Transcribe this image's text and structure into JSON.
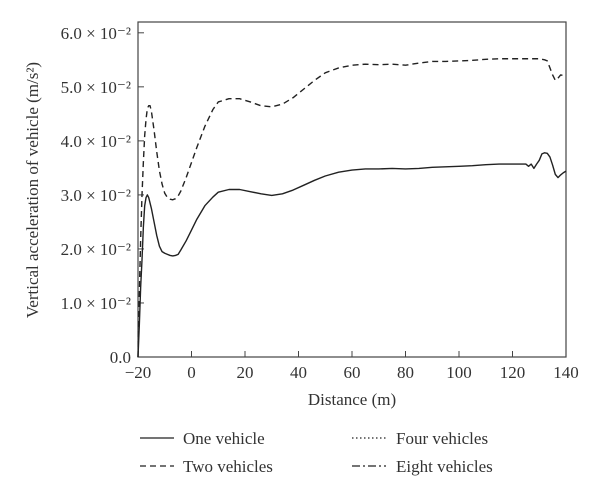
{
  "chart_data": {
    "type": "line",
    "xlabel": "Distance (m)",
    "ylabel": "Vertical acceleration of vehicle (m/s²)",
    "xlim": [
      -20,
      140
    ],
    "ylim": [
      0,
      0.062
    ],
    "x_ticks": [
      -20,
      0,
      20,
      40,
      60,
      80,
      100,
      120,
      140
    ],
    "y_ticks": [
      {
        "value": 0,
        "label": "0.0"
      },
      {
        "value": 0.01,
        "label": "1.0 × 10⁻²"
      },
      {
        "value": 0.02,
        "label": "2.0 × 10⁻²"
      },
      {
        "value": 0.03,
        "label": "3.0 × 10⁻²"
      },
      {
        "value": 0.04,
        "label": "4.0 × 10⁻²"
      },
      {
        "value": 0.05,
        "label": "5.0 × 10⁻²"
      },
      {
        "value": 0.06,
        "label": "6.0 × 10⁻²"
      }
    ],
    "grid": false,
    "legend_position": "bottom",
    "series": [
      {
        "name": "One vehicle",
        "line_style": "solid",
        "x": [
          -20,
          -19.5,
          -19,
          -18.5,
          -18,
          -17.5,
          -17,
          -16.5,
          -16,
          -15,
          -14,
          -13,
          -12,
          -11,
          -10,
          -9,
          -8,
          -7,
          -6,
          -5,
          -4,
          -2,
          0,
          2,
          5,
          8,
          10,
          14,
          18,
          22,
          26,
          30,
          34,
          38,
          42,
          46,
          50,
          55,
          60,
          65,
          70,
          75,
          80,
          85,
          90,
          95,
          100,
          105,
          110,
          115,
          120,
          124,
          125,
          126,
          127,
          128,
          129,
          130,
          131,
          132,
          133,
          134,
          135,
          136,
          137,
          138,
          139,
          140
        ],
        "y": [
          0.0,
          0.006,
          0.013,
          0.018,
          0.024,
          0.028,
          0.0295,
          0.03,
          0.0295,
          0.0275,
          0.025,
          0.0225,
          0.0205,
          0.0195,
          0.0192,
          0.019,
          0.0188,
          0.0187,
          0.0188,
          0.019,
          0.0198,
          0.0215,
          0.0235,
          0.0255,
          0.028,
          0.0296,
          0.0305,
          0.031,
          0.031,
          0.0306,
          0.0302,
          0.0299,
          0.0302,
          0.0309,
          0.0318,
          0.0327,
          0.0335,
          0.0342,
          0.0346,
          0.0348,
          0.0348,
          0.0349,
          0.0348,
          0.0349,
          0.0351,
          0.0352,
          0.0353,
          0.0354,
          0.0356,
          0.0357,
          0.0357,
          0.0357,
          0.0357,
          0.0353,
          0.0357,
          0.0349,
          0.0357,
          0.0364,
          0.0376,
          0.0378,
          0.0377,
          0.037,
          0.0355,
          0.0338,
          0.0332,
          0.0337,
          0.0341,
          0.0344
        ]
      },
      {
        "name": "Two vehicles",
        "line_style": "dashed",
        "x": [
          -20,
          -19.5,
          -19,
          -18.5,
          -18,
          -17.5,
          -17,
          -16.5,
          -16,
          -15.5,
          -15,
          -14,
          -13,
          -12,
          -11,
          -10,
          -9,
          -8,
          -7,
          -6,
          -5,
          -4,
          -2,
          0,
          2,
          5,
          8,
          10,
          14,
          18,
          22,
          26,
          30,
          34,
          38,
          42,
          46,
          50,
          55,
          60,
          65,
          70,
          75,
          80,
          85,
          90,
          95,
          100,
          105,
          110,
          115,
          120,
          125,
          128,
          130,
          131,
          132,
          133,
          134,
          135,
          136,
          137,
          138,
          139,
          140
        ],
        "y": [
          0.0,
          0.012,
          0.022,
          0.03,
          0.036,
          0.041,
          0.044,
          0.046,
          0.0465,
          0.0465,
          0.0455,
          0.042,
          0.038,
          0.0345,
          0.032,
          0.0303,
          0.0295,
          0.0292,
          0.0291,
          0.0293,
          0.0298,
          0.0307,
          0.0332,
          0.036,
          0.0388,
          0.0427,
          0.0458,
          0.0472,
          0.0478,
          0.0478,
          0.0472,
          0.0465,
          0.0463,
          0.0468,
          0.048,
          0.0496,
          0.0512,
          0.0526,
          0.0535,
          0.054,
          0.0542,
          0.0541,
          0.0542,
          0.054,
          0.0544,
          0.0547,
          0.0547,
          0.0548,
          0.0549,
          0.0551,
          0.0552,
          0.0552,
          0.0552,
          0.0552,
          0.0552,
          0.0551,
          0.055,
          0.0548,
          0.0535,
          0.0522,
          0.0512,
          0.0516,
          0.0522,
          0.0521,
          0.0519
        ]
      },
      {
        "name": "Four vehicles",
        "line_style": "dotted",
        "x": [],
        "y": []
      },
      {
        "name": "Eight vehicles",
        "line_style": "dashdot",
        "x": [],
        "y": []
      }
    ]
  }
}
